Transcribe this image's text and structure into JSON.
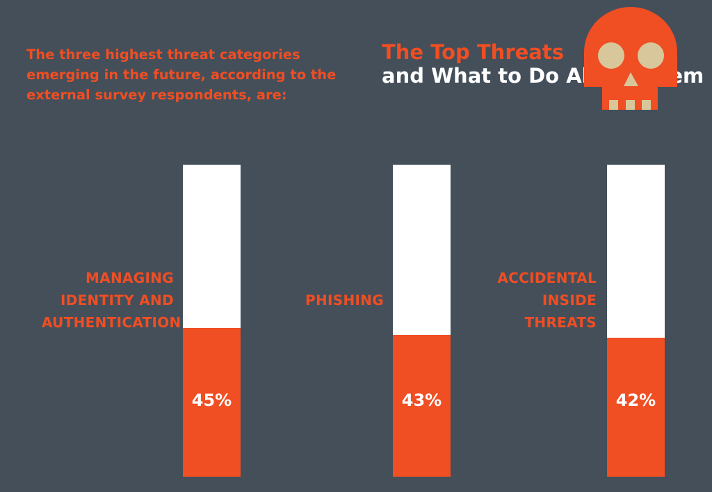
{
  "intro_text": "The three highest threat categories emerging in the future, according to the external survey respondents, are:",
  "title": {
    "line1": "The Top Threats",
    "line2": "and What to Do About Them"
  },
  "icon": "skull-icon",
  "colors": {
    "background": "#444f5a",
    "accent": "#f04e23",
    "bar_empty": "#ffffff",
    "skull_detail": "#d8c79a"
  },
  "chart_data": {
    "type": "bar",
    "categories": [
      "MANAGING IDENTITY AND AUTHENTICATION",
      "PHISHING",
      "ACCIDENTAL INSIDE THREATS"
    ],
    "values": [
      45,
      43,
      42
    ],
    "value_labels": [
      "45%",
      "43%",
      "42%"
    ],
    "grid": false
  }
}
